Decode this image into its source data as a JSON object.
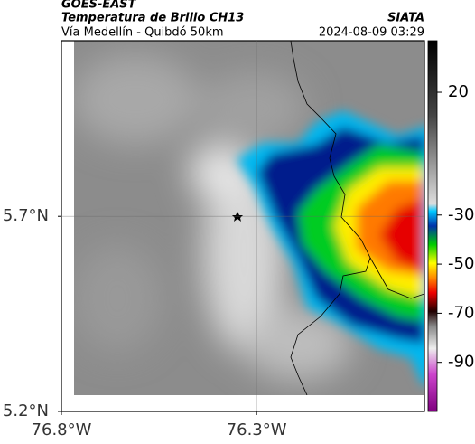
{
  "header": {
    "source": "GOES-EAST",
    "title": "Temperatura de Brillo CH13",
    "credit": "SIATA",
    "subtitle": "Vía Medellín - Quibdó 50km",
    "timestamp": "2024-08-09 03:29"
  },
  "map": {
    "xlim": [
      -76.8,
      -75.87
    ],
    "ylim": [
      5.2,
      6.15
    ],
    "xticks": [
      {
        "value": -76.8,
        "label": "76.8°W"
      },
      {
        "value": -76.3,
        "label": "76.3°W"
      }
    ],
    "yticks": [
      {
        "value": 5.2,
        "label": "5.2°N"
      },
      {
        "value": 5.7,
        "label": "5.7°N"
      }
    ],
    "grid": true
  },
  "colorbar": {
    "clim": [
      -110,
      41
    ],
    "ticks": [
      20,
      -30,
      -50,
      -70,
      -90
    ]
  }
}
